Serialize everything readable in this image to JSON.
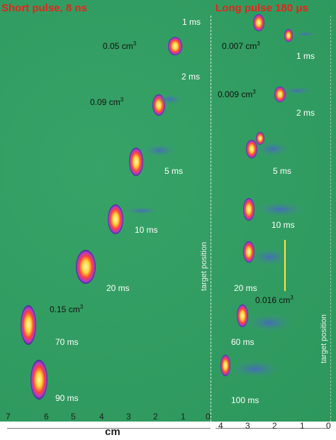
{
  "titles": {
    "left": "Short pulse, 8 ns",
    "right": "Long pulse 180 μs"
  },
  "left_times": [
    "1 ms",
    "2 ms",
    "5 ms",
    "10 ms",
    "20 ms",
    "70 ms",
    "90 ms"
  ],
  "right_times": [
    "1 ms",
    "2 ms",
    "5 ms",
    "10 ms",
    "20 ms",
    "60 ms",
    "100 ms"
  ],
  "left_volumes": {
    "v1": "0.05 cm",
    "v2": "0.09 cm",
    "v3": "0.15 cm"
  },
  "right_volumes": {
    "v1": "0.007 cm",
    "v2": "0.009 cm",
    "v3": "0.016 cm"
  },
  "superscript": "3",
  "target_label": "target position",
  "axis_unit": "cm",
  "left_ticks": [
    "7",
    "6",
    "5",
    "4",
    "3",
    "2",
    "1",
    "0"
  ],
  "right_ticks": [
    "4",
    "3",
    "2",
    "1",
    "0"
  ],
  "colors": {
    "background": "#2f9f61",
    "title": "#e8231a"
  }
}
